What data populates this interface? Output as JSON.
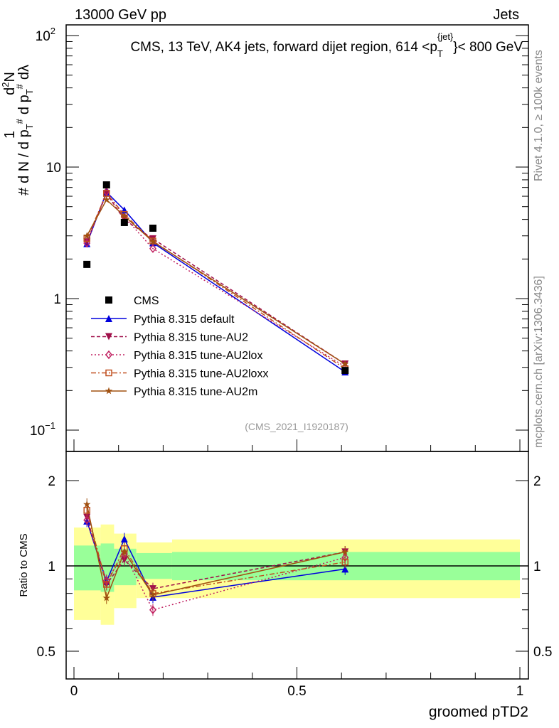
{
  "header": {
    "left": "13000 GeV pp",
    "right": "Jets"
  },
  "side": {
    "rivet": "Rivet 4.1.0, ≥ 100k events",
    "mcplots": "mcplots.cern.ch [arXiv:1306.3436]"
  },
  "watermark": "(CMS_2021_I1920187)",
  "chart_data": {
    "type": "line",
    "title": "CMS, 13 TeV, AK4 jets, forward dijet region, 614 <p_T^{jet}< 800 GeV",
    "title_parts": {
      "pre": "CMS, 13 TeV, AK4 jets, forward dijet region, 614 <p",
      "sub": "T",
      "sup": "{jet}",
      "post": "}< 800 GeV"
    },
    "xlabel": "groomed pTD2",
    "ylabel": "# 1/(dN / d p_T^#) d²N/(d p_T^# dλ)",
    "ylabel_parts": {
      "a": "#",
      "b": "1",
      "c": "d N / d p",
      "d": "T",
      "e": "#",
      "f": "d",
      "g": "2",
      "h": "N",
      "i": "d p",
      "j": "T",
      "k": "#",
      "l": "dλ"
    },
    "ratio_ylabel": "Ratio to CMS",
    "xlim": [
      0,
      1
    ],
    "ylim_log": [
      0.07,
      130
    ],
    "ratio_ylim_log": [
      0.4,
      2.3
    ],
    "xticks": [
      {
        "v": 0,
        "label": "0"
      },
      {
        "v": 0.5,
        "label": "0.5"
      },
      {
        "v": 1,
        "label": "1"
      }
    ],
    "yticks": [
      {
        "v": 0.1,
        "label": "10",
        "exp": "−1"
      },
      {
        "v": 1,
        "label": "1"
      },
      {
        "v": 10,
        "label": "10"
      },
      {
        "v": 100,
        "label": "10",
        "exp": "2"
      }
    ],
    "ratio_yticks": [
      {
        "v": 0.5,
        "label": "0.5"
      },
      {
        "v": 1,
        "label": "1"
      },
      {
        "v": 2,
        "label": "2"
      }
    ],
    "x": [
      0.029,
      0.073,
      0.113,
      0.177,
      0.608
    ],
    "bin_edges": [
      0,
      0.06,
      0.09,
      0.14,
      0.22,
      1.0
    ],
    "band_inner": [
      [
        0.82,
        1.18
      ],
      [
        0.81,
        1.2
      ],
      [
        0.855,
        1.15
      ],
      [
        0.9,
        1.11
      ],
      [
        0.89,
        1.12
      ]
    ],
    "band_outer": [
      [
        0.645,
        1.366
      ],
      [
        0.62,
        1.4
      ],
      [
        0.71,
        1.3
      ],
      [
        0.77,
        1.21
      ],
      [
        0.77,
        1.24
      ]
    ],
    "data": {
      "name": "CMS",
      "values": [
        1.82,
        7.32,
        3.79,
        3.43,
        0.284
      ],
      "color": "#000000"
    },
    "series": [
      {
        "name": "Pythia 8.315 default",
        "values": [
          2.62,
          6.45,
          4.72,
          2.66,
          0.277
        ],
        "color": "#0000dd",
        "marker": "tri-up",
        "dash": ""
      },
      {
        "name": "Pythia 8.315 tune-AU2",
        "values": [
          2.7,
          6.3,
          3.98,
          2.85,
          0.318
        ],
        "color": "#a0104a",
        "marker": "tri-down",
        "dash": "5,3"
      },
      {
        "name": "Pythia 8.315 tune-AU2lox",
        "values": [
          2.64,
          6.5,
          4.17,
          2.4,
          0.304
        ],
        "color": "#c02060",
        "marker": "diamond",
        "dash": "2,3"
      },
      {
        "name": "Pythia 8.315 tune-AU2loxx",
        "values": [
          2.86,
          6.3,
          4.36,
          2.74,
          0.293
        ],
        "color": "#c05020",
        "marker": "square",
        "dash": "7,3,2,3"
      },
      {
        "name": "Pythia 8.315 tune-AU2m",
        "values": [
          3.0,
          5.64,
          4.25,
          2.71,
          0.318
        ],
        "color": "#a05010",
        "marker": "star",
        "dash": ""
      }
    ]
  }
}
